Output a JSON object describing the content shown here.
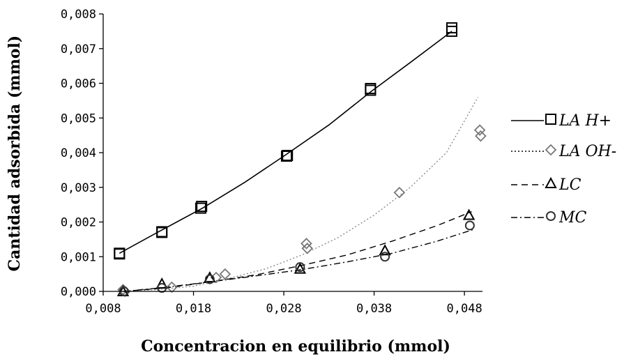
{
  "chart_data": {
    "type": "scatter",
    "xlabel": "Concentracion en equilibrio (mmol)",
    "ylabel": "Cantidad adsorbida (mmol)",
    "xlim": [
      0.008,
      0.05
    ],
    "ylim": [
      0.0,
      0.008
    ],
    "xticks": [
      0.008,
      0.018,
      0.028,
      0.038,
      0.048
    ],
    "xtick_labels": [
      "0,008",
      "0,018",
      "0,028",
      "0,038",
      "0,048"
    ],
    "yticks": [
      0.0,
      0.001,
      0.002,
      0.003,
      0.004,
      0.005,
      0.006,
      0.007,
      0.008
    ],
    "ytick_labels": [
      "0,000",
      "0,001",
      "0,002",
      "0,003",
      "0,004",
      "0,005",
      "0,006",
      "0,007",
      "0,008"
    ],
    "grid": false,
    "legend_position": "right",
    "series": [
      {
        "name": "LA H+",
        "marker": "square",
        "line_style": "solid",
        "line_color": "#000000",
        "marker_color": "#000000",
        "points": [
          [
            0.0098,
            0.0011
          ],
          [
            0.0098,
            0.00108
          ],
          [
            0.0145,
            0.0017
          ],
          [
            0.0145,
            0.00172
          ],
          [
            0.0188,
            0.0024
          ],
          [
            0.0189,
            0.00245
          ],
          [
            0.0283,
            0.0039
          ],
          [
            0.0284,
            0.00392
          ],
          [
            0.0376,
            0.0058
          ],
          [
            0.0376,
            0.00585
          ],
          [
            0.0466,
            0.0075
          ],
          [
            0.0466,
            0.0076
          ]
        ],
        "fit": [
          [
            0.0098,
            0.0011
          ],
          [
            0.014,
            0.0017
          ],
          [
            0.019,
            0.0024
          ],
          [
            0.0237,
            0.00315
          ],
          [
            0.028,
            0.0039
          ],
          [
            0.033,
            0.0048
          ],
          [
            0.0376,
            0.00575
          ],
          [
            0.042,
            0.0066
          ],
          [
            0.0466,
            0.0075
          ]
        ]
      },
      {
        "name": "LA OH-",
        "marker": "diamond",
        "line_style": "dotted",
        "line_color": "#8c8c8c",
        "marker_color": "#777777",
        "points": [
          [
            0.0102,
            5e-05
          ],
          [
            0.0104,
            0.0
          ],
          [
            0.0156,
            0.00012
          ],
          [
            0.0205,
            0.0004
          ],
          [
            0.0215,
            0.0005
          ],
          [
            0.0305,
            0.00138
          ],
          [
            0.0306,
            0.00124
          ],
          [
            0.0408,
            0.00285
          ],
          [
            0.0497,
            0.00465
          ],
          [
            0.0498,
            0.00448
          ]
        ],
        "fit": [
          [
            0.0098,
            0.0
          ],
          [
            0.014,
            5e-05
          ],
          [
            0.018,
            0.00015
          ],
          [
            0.022,
            0.00038
          ],
          [
            0.026,
            0.00065
          ],
          [
            0.03,
            0.00105
          ],
          [
            0.034,
            0.00155
          ],
          [
            0.038,
            0.0022
          ],
          [
            0.042,
            0.003
          ],
          [
            0.046,
            0.004
          ],
          [
            0.0495,
            0.0056
          ]
        ]
      },
      {
        "name": "LC",
        "marker": "triangle",
        "line_style": "dashed",
        "line_color": "#000000",
        "marker_color": "#000000",
        "points": [
          [
            0.0102,
            0.0
          ],
          [
            0.0145,
            0.00022
          ],
          [
            0.0198,
            0.0004
          ],
          [
            0.0298,
            0.00065
          ],
          [
            0.0392,
            0.00118
          ],
          [
            0.0485,
            0.0022
          ]
        ],
        "fit": [
          [
            0.0102,
            0.0
          ],
          [
            0.015,
            0.0001
          ],
          [
            0.02,
            0.00028
          ],
          [
            0.025,
            0.00048
          ],
          [
            0.03,
            0.00075
          ],
          [
            0.035,
            0.00105
          ],
          [
            0.04,
            0.00145
          ],
          [
            0.045,
            0.0019
          ],
          [
            0.0488,
            0.0023
          ]
        ]
      },
      {
        "name": "MC",
        "marker": "circle",
        "line_style": "dashdot",
        "line_color": "#000000",
        "marker_color": "#333333",
        "points": [
          [
            0.0103,
            0.0
          ],
          [
            0.0145,
            0.0001
          ],
          [
            0.0198,
            0.00035
          ],
          [
            0.0298,
            0.0007
          ],
          [
            0.0392,
            0.001
          ],
          [
            0.0486,
            0.0019
          ]
        ],
        "fit": [
          [
            0.0103,
            0.0
          ],
          [
            0.015,
            0.00012
          ],
          [
            0.02,
            0.00028
          ],
          [
            0.025,
            0.00045
          ],
          [
            0.03,
            0.00063
          ],
          [
            0.035,
            0.00085
          ],
          [
            0.04,
            0.0011
          ],
          [
            0.045,
            0.00145
          ],
          [
            0.0492,
            0.0018
          ]
        ]
      }
    ]
  }
}
